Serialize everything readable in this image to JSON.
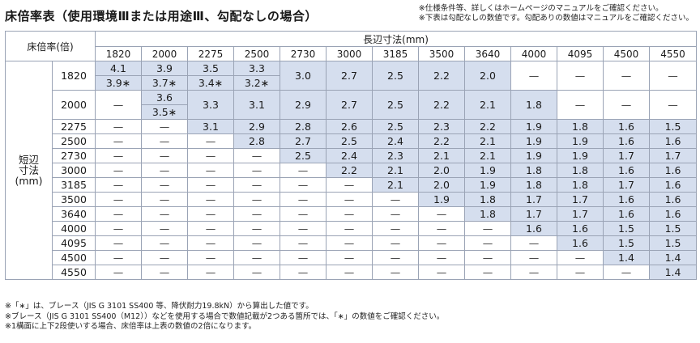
{
  "title": "床倍率表（使用環境Ⅲまたは用途Ⅲ、勾配なしの場合）",
  "top_notes": [
    "※仕様条件等、詳しくはホームページのマニュアルをご確認ください。",
    "※下表は勾配なしの数値です。勾配ありの数値はマニュアルをご確認ください。"
  ],
  "table": {
    "corner_label": "床倍率(倍)",
    "long_label": "長辺寸法(mm)",
    "short_label": [
      "短辺",
      "寸法",
      "(mm)"
    ],
    "columns": [
      "1820",
      "2000",
      "2275",
      "2500",
      "2730",
      "3000",
      "3185",
      "3500",
      "3640",
      "4000",
      "4095",
      "4500",
      "4550"
    ],
    "rows": [
      {
        "label": "1820",
        "cells": [
          {
            "top": "4.1",
            "bot": "3.9∗",
            "shade": true
          },
          {
            "top": "3.9",
            "bot": "3.7∗",
            "shade": true
          },
          {
            "top": "3.5",
            "bot": "3.4∗",
            "shade": true
          },
          {
            "top": "3.3",
            "bot": "3.2∗",
            "shade": true
          },
          {
            "v": "3.0",
            "shade": true
          },
          {
            "v": "2.7",
            "shade": true
          },
          {
            "v": "2.5",
            "shade": true
          },
          {
            "v": "2.2",
            "shade": true
          },
          {
            "v": "2.0",
            "shade": true
          },
          {
            "v": "—"
          },
          {
            "v": "—"
          },
          {
            "v": "—"
          },
          {
            "v": "—"
          }
        ]
      },
      {
        "label": "2000",
        "cells": [
          {
            "v": "—"
          },
          {
            "top": "3.6",
            "bot": "3.5∗",
            "shade": true
          },
          {
            "v": "3.3",
            "shade": true
          },
          {
            "v": "3.1",
            "shade": true
          },
          {
            "v": "2.9",
            "shade": true
          },
          {
            "v": "2.7",
            "shade": true
          },
          {
            "v": "2.5",
            "shade": true
          },
          {
            "v": "2.2",
            "shade": true
          },
          {
            "v": "2.1",
            "shade": true
          },
          {
            "v": "1.8",
            "shade": true
          },
          {
            "v": "—"
          },
          {
            "v": "—"
          },
          {
            "v": "—"
          }
        ]
      },
      {
        "label": "2275",
        "cells": [
          {
            "v": "—"
          },
          {
            "v": "—"
          },
          {
            "v": "3.1",
            "shade": true
          },
          {
            "v": "2.9",
            "shade": true
          },
          {
            "v": "2.8",
            "shade": true
          },
          {
            "v": "2.6",
            "shade": true
          },
          {
            "v": "2.5",
            "shade": true
          },
          {
            "v": "2.3",
            "shade": true
          },
          {
            "v": "2.2",
            "shade": true
          },
          {
            "v": "1.9",
            "shade": true
          },
          {
            "v": "1.8",
            "shade": true
          },
          {
            "v": "1.6",
            "shade": true
          },
          {
            "v": "1.5",
            "shade": true
          }
        ]
      },
      {
        "label": "2500",
        "cells": [
          {
            "v": "—"
          },
          {
            "v": "—"
          },
          {
            "v": "—"
          },
          {
            "v": "2.8",
            "shade": true
          },
          {
            "v": "2.7",
            "shade": true
          },
          {
            "v": "2.5",
            "shade": true
          },
          {
            "v": "2.4",
            "shade": true
          },
          {
            "v": "2.2",
            "shade": true
          },
          {
            "v": "2.1",
            "shade": true
          },
          {
            "v": "1.9",
            "shade": true
          },
          {
            "v": "1.9",
            "shade": true
          },
          {
            "v": "1.6",
            "shade": true
          },
          {
            "v": "1.6",
            "shade": true
          }
        ]
      },
      {
        "label": "2730",
        "cells": [
          {
            "v": "—"
          },
          {
            "v": "—"
          },
          {
            "v": "—"
          },
          {
            "v": "—"
          },
          {
            "v": "2.5",
            "shade": true
          },
          {
            "v": "2.4",
            "shade": true
          },
          {
            "v": "2.3",
            "shade": true
          },
          {
            "v": "2.1",
            "shade": true
          },
          {
            "v": "2.1",
            "shade": true
          },
          {
            "v": "1.9",
            "shade": true
          },
          {
            "v": "1.9",
            "shade": true
          },
          {
            "v": "1.7",
            "shade": true
          },
          {
            "v": "1.7",
            "shade": true
          }
        ]
      },
      {
        "label": "3000",
        "cells": [
          {
            "v": "—"
          },
          {
            "v": "—"
          },
          {
            "v": "—"
          },
          {
            "v": "—"
          },
          {
            "v": "—"
          },
          {
            "v": "2.2",
            "shade": true
          },
          {
            "v": "2.1",
            "shade": true
          },
          {
            "v": "2.0",
            "shade": true
          },
          {
            "v": "1.9",
            "shade": true
          },
          {
            "v": "1.8",
            "shade": true
          },
          {
            "v": "1.8",
            "shade": true
          },
          {
            "v": "1.6",
            "shade": true
          },
          {
            "v": "1.6",
            "shade": true
          }
        ]
      },
      {
        "label": "3185",
        "cells": [
          {
            "v": "—"
          },
          {
            "v": "—"
          },
          {
            "v": "—"
          },
          {
            "v": "—"
          },
          {
            "v": "—"
          },
          {
            "v": "—"
          },
          {
            "v": "2.1",
            "shade": true
          },
          {
            "v": "2.0",
            "shade": true
          },
          {
            "v": "1.9",
            "shade": true
          },
          {
            "v": "1.8",
            "shade": true
          },
          {
            "v": "1.8",
            "shade": true
          },
          {
            "v": "1.7",
            "shade": true
          },
          {
            "v": "1.6",
            "shade": true
          }
        ]
      },
      {
        "label": "3500",
        "cells": [
          {
            "v": "—"
          },
          {
            "v": "—"
          },
          {
            "v": "—"
          },
          {
            "v": "—"
          },
          {
            "v": "—"
          },
          {
            "v": "—"
          },
          {
            "v": "—"
          },
          {
            "v": "1.9",
            "shade": true
          },
          {
            "v": "1.8",
            "shade": true
          },
          {
            "v": "1.7",
            "shade": true
          },
          {
            "v": "1.7",
            "shade": true
          },
          {
            "v": "1.6",
            "shade": true
          },
          {
            "v": "1.6",
            "shade": true
          }
        ]
      },
      {
        "label": "3640",
        "cells": [
          {
            "v": "—"
          },
          {
            "v": "—"
          },
          {
            "v": "—"
          },
          {
            "v": "—"
          },
          {
            "v": "—"
          },
          {
            "v": "—"
          },
          {
            "v": "—"
          },
          {
            "v": "—"
          },
          {
            "v": "1.8",
            "shade": true
          },
          {
            "v": "1.7",
            "shade": true
          },
          {
            "v": "1.7",
            "shade": true
          },
          {
            "v": "1.6",
            "shade": true
          },
          {
            "v": "1.6",
            "shade": true
          }
        ]
      },
      {
        "label": "4000",
        "cells": [
          {
            "v": "—"
          },
          {
            "v": "—"
          },
          {
            "v": "—"
          },
          {
            "v": "—"
          },
          {
            "v": "—"
          },
          {
            "v": "—"
          },
          {
            "v": "—"
          },
          {
            "v": "—"
          },
          {
            "v": "—"
          },
          {
            "v": "1.6",
            "shade": true
          },
          {
            "v": "1.6",
            "shade": true
          },
          {
            "v": "1.5",
            "shade": true
          },
          {
            "v": "1.5",
            "shade": true
          }
        ]
      },
      {
        "label": "4095",
        "cells": [
          {
            "v": "—"
          },
          {
            "v": "—"
          },
          {
            "v": "—"
          },
          {
            "v": "—"
          },
          {
            "v": "—"
          },
          {
            "v": "—"
          },
          {
            "v": "—"
          },
          {
            "v": "—"
          },
          {
            "v": "—"
          },
          {
            "v": "—"
          },
          {
            "v": "1.6",
            "shade": true
          },
          {
            "v": "1.5",
            "shade": true
          },
          {
            "v": "1.5",
            "shade": true
          }
        ]
      },
      {
        "label": "4500",
        "cells": [
          {
            "v": "—"
          },
          {
            "v": "—"
          },
          {
            "v": "—"
          },
          {
            "v": "—"
          },
          {
            "v": "—"
          },
          {
            "v": "—"
          },
          {
            "v": "—"
          },
          {
            "v": "—"
          },
          {
            "v": "—"
          },
          {
            "v": "—"
          },
          {
            "v": "—"
          },
          {
            "v": "1.4",
            "shade": true
          },
          {
            "v": "1.4",
            "shade": true
          }
        ]
      },
      {
        "label": "4550",
        "cells": [
          {
            "v": "—"
          },
          {
            "v": "—"
          },
          {
            "v": "—"
          },
          {
            "v": "—"
          },
          {
            "v": "—"
          },
          {
            "v": "—"
          },
          {
            "v": "—"
          },
          {
            "v": "—"
          },
          {
            "v": "—"
          },
          {
            "v": "—"
          },
          {
            "v": "—"
          },
          {
            "v": "—"
          },
          {
            "v": "1.4",
            "shade": true
          }
        ]
      }
    ]
  },
  "bottom_notes": [
    "※「∗」は、ブレース（JIS G 3101 SS400 等、降伏耐力19.8kN）から算出した値です。",
    "※ブレース（JIS G 3101 SS400（M12））などを使用する場合で数値記載が2つある箇所では、「∗」の数値をご確認ください。",
    "※1構面に上下2段使いする場合、床倍率は上表の数値の2倍になります。"
  ],
  "colors": {
    "shade": "#d5deee",
    "border": "#9aa3b5"
  }
}
